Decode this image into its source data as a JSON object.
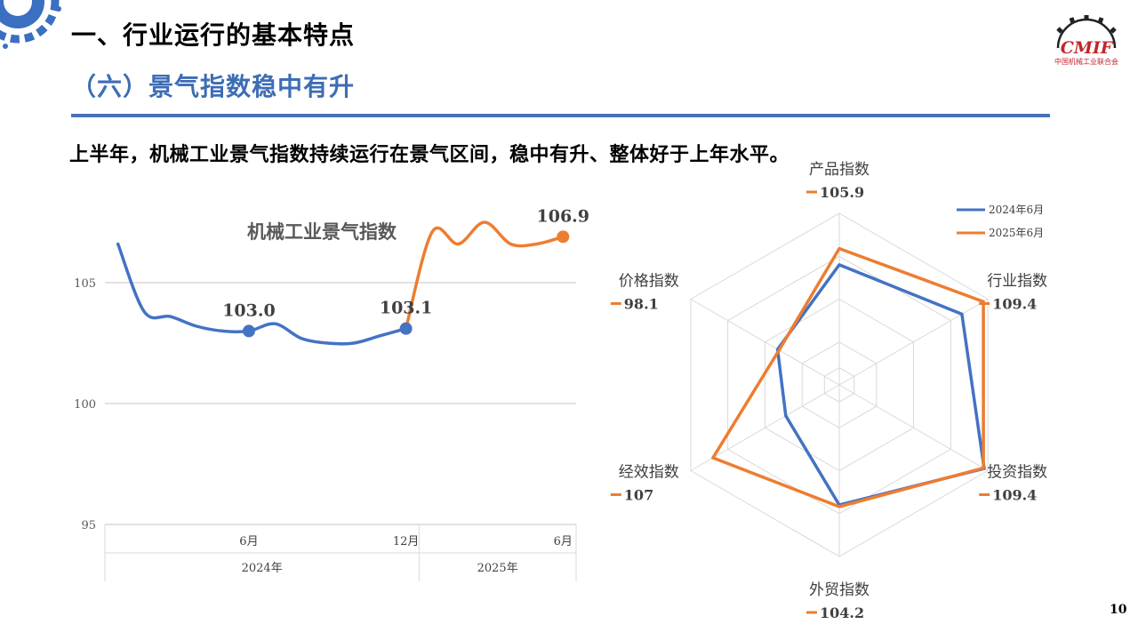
{
  "header": {
    "title": "一、行业运行的基本特点",
    "subtitle": "（六）景气指数稳中有升",
    "lead": "上半年，机械工业景气指数持续运行在景气区间，稳中有升、整体好于上年水平。"
  },
  "logo": {
    "mark": "CMIF",
    "text": "中国机械工业联合会"
  },
  "page_number": "10",
  "colors": {
    "blue": "#4472c4",
    "orange": "#ed7d31",
    "accent": "#4a72b8",
    "grid": "#d9d9d9",
    "logo_red": "#c0262d"
  },
  "chart_data": [
    {
      "type": "line",
      "title": "机械工业景气指数",
      "ylim": [
        95,
        107.5
      ],
      "yticks": [
        95,
        100,
        105
      ],
      "x_labels": [
        {
          "x": 6,
          "label": "6月"
        },
        {
          "x": 12,
          "label": "12月"
        },
        {
          "x": 18,
          "label": "6月"
        }
      ],
      "x_groups": [
        {
          "label": "2024年",
          "from": 0.5,
          "to": 12.5
        },
        {
          "label": "2025年",
          "from": 12.5,
          "to": 18.5
        }
      ],
      "series": [
        {
          "name": "2024",
          "color": "#4472c4",
          "points": [
            [
              1,
              106.6
            ],
            [
              2,
              103.8
            ],
            [
              3,
              103.6
            ],
            [
              4,
              103.2
            ],
            [
              5,
              103.0
            ],
            [
              6,
              103.0
            ],
            [
              7,
              103.3
            ],
            [
              8,
              102.7
            ],
            [
              9,
              102.5
            ],
            [
              10,
              102.5
            ],
            [
              11,
              102.8
            ],
            [
              12,
              103.1
            ]
          ]
        },
        {
          "name": "2025",
          "color": "#ed7d31",
          "points": [
            [
              12,
              103.1
            ],
            [
              13,
              107.1
            ],
            [
              14,
              106.6
            ],
            [
              15,
              107.5
            ],
            [
              16,
              106.6
            ],
            [
              17,
              106.6
            ],
            [
              18,
              106.9
            ]
          ]
        }
      ],
      "data_labels": [
        {
          "x": 6,
          "y": 103.0,
          "text": "103.0",
          "color": "#4472c4"
        },
        {
          "x": 12,
          "y": 103.1,
          "text": "103.1",
          "color": "#4472c4"
        },
        {
          "x": 18,
          "y": 106.9,
          "text": "106.9",
          "color": "#ed7d31"
        }
      ]
    },
    {
      "type": "radar",
      "axes": [
        "产品指数",
        "行业指数",
        "投资指数",
        "外贸指数",
        "经效指数",
        "价格指数"
      ],
      "axis_values_2025": [
        "105.9",
        "109.4",
        "109.4",
        "104.2",
        "107",
        "98.1"
      ],
      "rmin": 90,
      "rmax": 110,
      "rings": [
        92,
        95,
        100,
        105,
        110
      ],
      "series": [
        {
          "name": "2024年6月",
          "color": "#4472c4",
          "values": [
            104.0,
            106.5,
            109.5,
            104.0,
            97.2,
            98.3
          ]
        },
        {
          "name": "2025年6月",
          "color": "#ed7d31",
          "values": [
            105.9,
            109.4,
            109.4,
            104.2,
            107.0,
            98.1
          ]
        }
      ],
      "legend": [
        "2024年6月",
        "2025年6月"
      ],
      "legend_position": "top-right"
    }
  ]
}
